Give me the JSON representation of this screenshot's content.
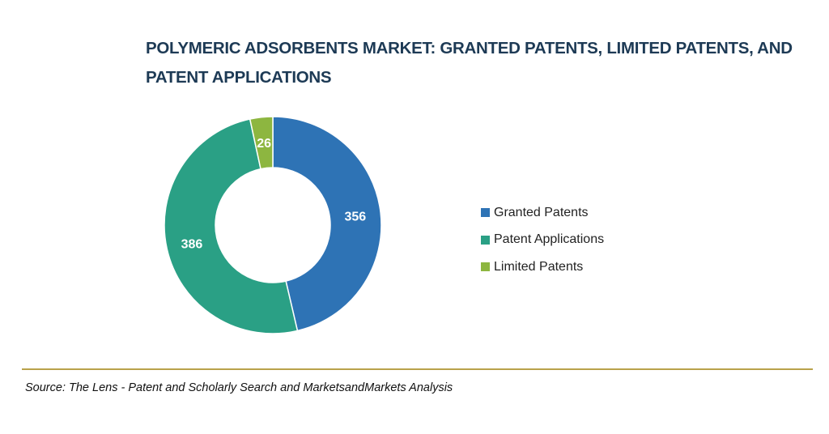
{
  "title_lines": [
    "POLYMERIC ADSORBENTS MARKET: GRANTED PATENTS, LIMITED PATENTS, AND",
    "PATENT APPLICATIONS"
  ],
  "source": "Source: The Lens - Patent and Scholarly Search and MarketsandMarkets Analysis",
  "colors": {
    "granted": "#2e73b5",
    "applications": "#2aa085",
    "limited": "#8db640",
    "title": "#1d3a55",
    "divider": "#b9a24a"
  },
  "chart_data": {
    "type": "pie",
    "subtype": "donut",
    "title": "POLYMERIC ADSORBENTS MARKET: GRANTED PATENTS, LIMITED PATENTS, AND PATENT APPLICATIONS",
    "legend_position": "right",
    "start": "top, clockwise",
    "slices": [
      {
        "label": "Granted Patents",
        "value": 356,
        "data_label": "356",
        "color": "#2e73b5"
      },
      {
        "label": "Patent Applications",
        "value": 386,
        "data_label": "386",
        "color": "#2aa085"
      },
      {
        "label": "Limited Patents",
        "value": 26,
        "data_label": "26",
        "color": "#8db640"
      }
    ]
  }
}
